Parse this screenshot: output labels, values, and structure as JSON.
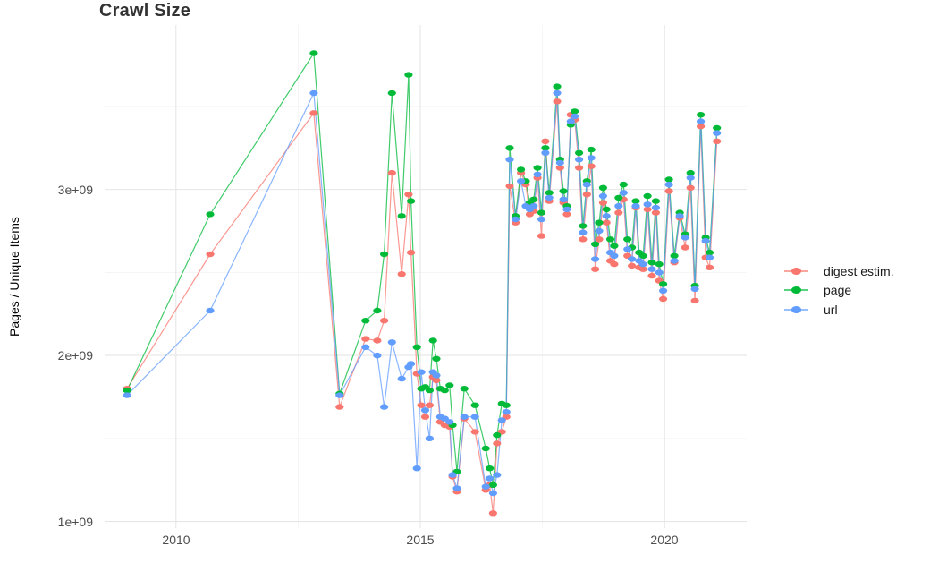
{
  "page": {
    "title": "Crawl Size"
  },
  "chart_data": {
    "type": "line",
    "title": "Crawl Size",
    "ylabel": "Pages / Unique Items",
    "xlabel": "",
    "legend_position": "right",
    "grid": {
      "major_color": "#e6e6e6",
      "minor_color": "#f2f2f2",
      "major_width": 1.1,
      "minor_width": 0.65
    },
    "xlim": [
      2008.54,
      2021.68
    ],
    "ylim_e9": [
      0.96,
      3.99
    ],
    "x_major_ticks": [
      {
        "value": 2010,
        "label": "2010"
      },
      {
        "value": 2015,
        "label": "2015"
      },
      {
        "value": 2020,
        "label": "2020"
      }
    ],
    "y_major_ticks": [
      {
        "value": 1,
        "label": "1e+09"
      },
      {
        "value": 2,
        "label": "2e+09"
      },
      {
        "value": 3,
        "label": "3e+09"
      }
    ],
    "x_minor_ticks": [
      2012.5,
      2017.5
    ],
    "y_minor_ticks_e9": [
      1.5,
      2.5,
      3.5
    ],
    "x": [
      2009.0,
      2010.7,
      2012.82,
      2013.35,
      2013.88,
      2014.12,
      2014.26,
      2014.42,
      2014.62,
      2014.76,
      2014.81,
      2014.93,
      2015.02,
      2015.1,
      2015.19,
      2015.26,
      2015.33,
      2015.41,
      2015.5,
      2015.6,
      2015.66,
      2015.75,
      2015.9,
      2016.12,
      2016.34,
      2016.42,
      2016.49,
      2016.57,
      2016.67,
      2016.76,
      2016.83,
      2016.95,
      2017.06,
      2017.16,
      2017.24,
      2017.32,
      2017.4,
      2017.48,
      2017.56,
      2017.64,
      2017.8,
      2017.86,
      2017.93,
      2018.0,
      2018.08,
      2018.16,
      2018.25,
      2018.33,
      2018.41,
      2018.5,
      2018.58,
      2018.66,
      2018.74,
      2018.81,
      2018.89,
      2018.97,
      2019.06,
      2019.16,
      2019.24,
      2019.33,
      2019.41,
      2019.48,
      2019.56,
      2019.65,
      2019.74,
      2019.82,
      2019.89,
      2019.97,
      2020.09,
      2020.2,
      2020.31,
      2020.42,
      2020.53,
      2020.62,
      2020.74,
      2020.84,
      2020.92,
      2021.07
    ],
    "values_unit": "1e+09",
    "series": [
      {
        "name": "digest estim.",
        "color": "#F8766D",
        "values": [
          1.8,
          2.61,
          3.46,
          1.69,
          2.1,
          2.09,
          2.21,
          3.1,
          2.49,
          2.97,
          2.62,
          1.89,
          1.7,
          1.63,
          1.7,
          1.87,
          1.85,
          1.6,
          1.58,
          1.57,
          1.27,
          1.18,
          1.62,
          1.54,
          1.19,
          1.22,
          1.05,
          1.47,
          1.54,
          1.63,
          3.02,
          2.8,
          3.1,
          3.03,
          2.85,
          2.87,
          3.07,
          2.72,
          3.29,
          2.93,
          3.53,
          3.13,
          2.92,
          2.85,
          3.45,
          3.42,
          3.13,
          2.7,
          2.97,
          3.14,
          2.52,
          2.7,
          2.92,
          2.8,
          2.57,
          2.55,
          2.86,
          2.94,
          2.6,
          2.54,
          2.89,
          2.53,
          2.52,
          2.88,
          2.48,
          2.86,
          2.45,
          2.34,
          2.99,
          2.56,
          2.83,
          2.65,
          3.01,
          2.33,
          3.38,
          2.59,
          2.53,
          3.29
        ]
      },
      {
        "name": "page",
        "color": "#00BA38",
        "values": [
          1.79,
          2.85,
          3.82,
          1.77,
          2.21,
          2.27,
          2.61,
          3.58,
          2.84,
          3.69,
          2.93,
          2.05,
          1.8,
          1.81,
          1.79,
          2.09,
          1.98,
          1.8,
          1.79,
          1.82,
          1.58,
          1.3,
          1.8,
          1.7,
          1.44,
          1.32,
          1.22,
          1.52,
          1.71,
          1.7,
          3.25,
          2.84,
          3.12,
          3.05,
          2.92,
          2.94,
          3.13,
          2.86,
          3.25,
          2.98,
          3.62,
          3.18,
          2.99,
          2.9,
          3.39,
          3.47,
          3.22,
          2.78,
          3.05,
          3.24,
          2.67,
          2.8,
          3.01,
          2.88,
          2.7,
          2.66,
          2.95,
          3.03,
          2.7,
          2.65,
          2.93,
          2.62,
          2.6,
          2.96,
          2.56,
          2.93,
          2.55,
          2.43,
          3.06,
          2.6,
          2.86,
          2.73,
          3.1,
          2.42,
          3.45,
          2.71,
          2.62,
          3.37
        ]
      },
      {
        "name": "url",
        "color": "#619CFF",
        "values": [
          1.76,
          2.27,
          3.58,
          1.76,
          2.05,
          2.0,
          1.69,
          2.08,
          1.86,
          1.93,
          1.95,
          1.32,
          1.9,
          1.67,
          1.5,
          1.9,
          1.88,
          1.63,
          1.62,
          1.6,
          1.28,
          1.2,
          1.63,
          1.63,
          1.21,
          1.26,
          1.17,
          1.28,
          1.61,
          1.66,
          3.18,
          2.82,
          3.05,
          2.9,
          2.88,
          2.9,
          3.09,
          2.82,
          3.22,
          2.95,
          3.58,
          3.16,
          2.94,
          2.88,
          3.41,
          3.44,
          3.18,
          2.74,
          3.03,
          3.19,
          2.58,
          2.75,
          2.96,
          2.84,
          2.62,
          2.6,
          2.9,
          2.98,
          2.64,
          2.58,
          2.9,
          2.57,
          2.55,
          2.91,
          2.52,
          2.89,
          2.5,
          2.39,
          3.03,
          2.57,
          2.84,
          2.71,
          3.07,
          2.4,
          3.41,
          2.69,
          2.59,
          3.34
        ]
      }
    ]
  }
}
